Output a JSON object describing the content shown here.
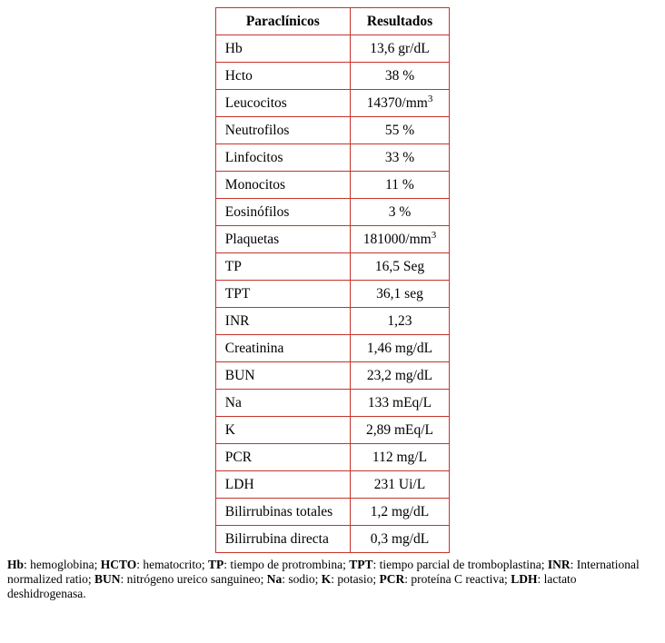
{
  "colors": {
    "table_border": "#c4342b"
  },
  "table": {
    "headers": [
      "Paraclínicos",
      "Resultados"
    ],
    "rows": [
      {
        "label": "Hb",
        "value": "13,6 gr/dL"
      },
      {
        "label": "Hcto",
        "value": "38 %"
      },
      {
        "label": "Leucocitos",
        "value": "14370/mm",
        "sup": "3"
      },
      {
        "label": "Neutrofilos",
        "value": "55 %"
      },
      {
        "label": "Linfocitos",
        "value": "33 %"
      },
      {
        "label": "Monocitos",
        "value": "11 %"
      },
      {
        "label": "Eosinófilos",
        "value": "3 %"
      },
      {
        "label": "Plaquetas",
        "value": "181000/mm",
        "sup": "3"
      },
      {
        "label": "TP",
        "value": "16,5 Seg"
      },
      {
        "label": "TPT",
        "value": "36,1 seg"
      },
      {
        "label": "INR",
        "value": "1,23"
      },
      {
        "label": "Creatinina",
        "value": "1,46 mg/dL"
      },
      {
        "label": "BUN",
        "value": "23,2 mg/dL"
      },
      {
        "label": "Na",
        "value": "133 mEq/L"
      },
      {
        "label": "K",
        "value": "2,89 mEq/L"
      },
      {
        "label": "PCR",
        "value": "112 mg/L"
      },
      {
        "label": "LDH",
        "value": "231 Ui/L"
      },
      {
        "label": "Bilirrubinas totales",
        "value": "1,2 mg/dL"
      },
      {
        "label": "Bilirrubina directa",
        "value": "0,3 mg/dL"
      }
    ]
  },
  "footnote": {
    "segments": [
      {
        "abbr": "Hb",
        "text": ": hemoglobina; "
      },
      {
        "abbr": "HCTO",
        "text": ": hematocrito; "
      },
      {
        "abbr": "TP",
        "text": ": tiempo de protrombina; "
      },
      {
        "abbr": "TPT",
        "text": ": tiempo parcial de tromboplastina; "
      },
      {
        "abbr": "INR",
        "text": ": International normalized ratio; "
      },
      {
        "abbr": "BUN",
        "text": ": nitrógeno ureico sanguineo; "
      },
      {
        "abbr": "Na",
        "text": ": sodio; "
      },
      {
        "abbr": "K",
        "text": ": potasio; "
      },
      {
        "abbr": "PCR",
        "text": ": proteína C reactiva; "
      },
      {
        "abbr": "LDH",
        "text": ": lactato deshidrogenasa."
      }
    ]
  }
}
